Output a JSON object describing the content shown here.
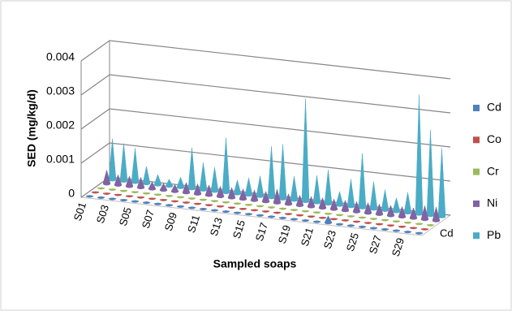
{
  "chart_data": {
    "type": "cone3d",
    "y_label": "SED (mg/kg/d)",
    "x_label": "Sampled soaps",
    "categories": [
      "S01",
      null,
      "S03",
      null,
      "S05",
      null,
      "S07",
      null,
      "S09",
      null,
      "S11",
      null,
      "S13",
      null,
      "S15",
      null,
      "S17",
      null,
      "S19",
      null,
      "S21",
      null,
      "S23",
      null,
      "S25",
      null,
      "S27",
      null,
      "S29",
      null
    ],
    "ylim": [
      0,
      0.004
    ],
    "yticks": [
      0,
      0.001,
      0.002,
      0.003,
      0.004
    ],
    "grid": true,
    "legend": "right",
    "series": [
      {
        "name": "Cd",
        "color": "#4f81bd",
        "values": [
          2e-05,
          2e-05,
          2e-05,
          2e-05,
          2e-05,
          2e-05,
          2e-05,
          2e-05,
          2e-05,
          2e-05,
          2e-05,
          2e-05,
          2e-05,
          2e-05,
          2e-05,
          2e-05,
          2e-05,
          2e-05,
          2e-05,
          2e-05,
          2e-05,
          0.0002,
          2e-05,
          2e-05,
          2e-05,
          2e-05,
          2e-05,
          2e-05,
          2e-05,
          2e-05
        ]
      },
      {
        "name": "Co",
        "color": "#c0504d",
        "values": [
          1e-05,
          1e-05,
          1e-05,
          1e-05,
          1e-05,
          1e-05,
          1e-05,
          1e-05,
          1e-05,
          1e-05,
          1e-05,
          1e-05,
          1e-05,
          1e-05,
          1e-05,
          1e-05,
          1e-05,
          1e-05,
          1e-05,
          1e-05,
          1e-05,
          1e-05,
          1e-05,
          1e-05,
          1e-05,
          1e-05,
          1e-05,
          1e-05,
          1e-05,
          1e-05
        ]
      },
      {
        "name": "Cr",
        "color": "#9bbb59",
        "values": [
          1e-05,
          1e-05,
          1e-05,
          1e-05,
          1e-05,
          1e-05,
          1e-05,
          1e-05,
          1e-05,
          1e-05,
          1e-05,
          1e-05,
          1e-05,
          1e-05,
          1e-05,
          1e-05,
          1e-05,
          1e-05,
          1e-05,
          1e-05,
          1e-05,
          1e-05,
          1e-05,
          1e-05,
          1e-05,
          1e-05,
          1e-05,
          1e-05,
          1e-05,
          1e-05
        ]
      },
      {
        "name": "Ni",
        "color": "#8064a2",
        "values": [
          0.0004,
          0.0003,
          0.0003,
          0.0003,
          0.0002,
          0.0002,
          0.0002,
          0.0003,
          0.0003,
          0.0003,
          0.0003,
          0.0003,
          0.0003,
          0.0003,
          0.0003,
          0.0004,
          0.0003,
          0.0003,
          0.0003,
          0.0003,
          0.0003,
          0.0003,
          0.0003,
          0.0003,
          0.0003,
          0.0003,
          0.0003,
          0.0003,
          0.0004,
          0.0004
        ]
      },
      {
        "name": "Pb",
        "color": "#4bacc6",
        "values": [
          0.0012,
          0.0011,
          0.001,
          0.0005,
          0.0003,
          0.0002,
          0.0003,
          0.0012,
          0.0008,
          0.0007,
          0.0016,
          0.0004,
          0.0005,
          0.0006,
          0.0015,
          0.0016,
          0.0007,
          0.003,
          0.0008,
          0.001,
          0.0004,
          0.0008,
          0.0016,
          0.0008,
          0.0006,
          0.0004,
          0.0006,
          0.0035,
          0.0025,
          0.002
        ]
      }
    ]
  }
}
